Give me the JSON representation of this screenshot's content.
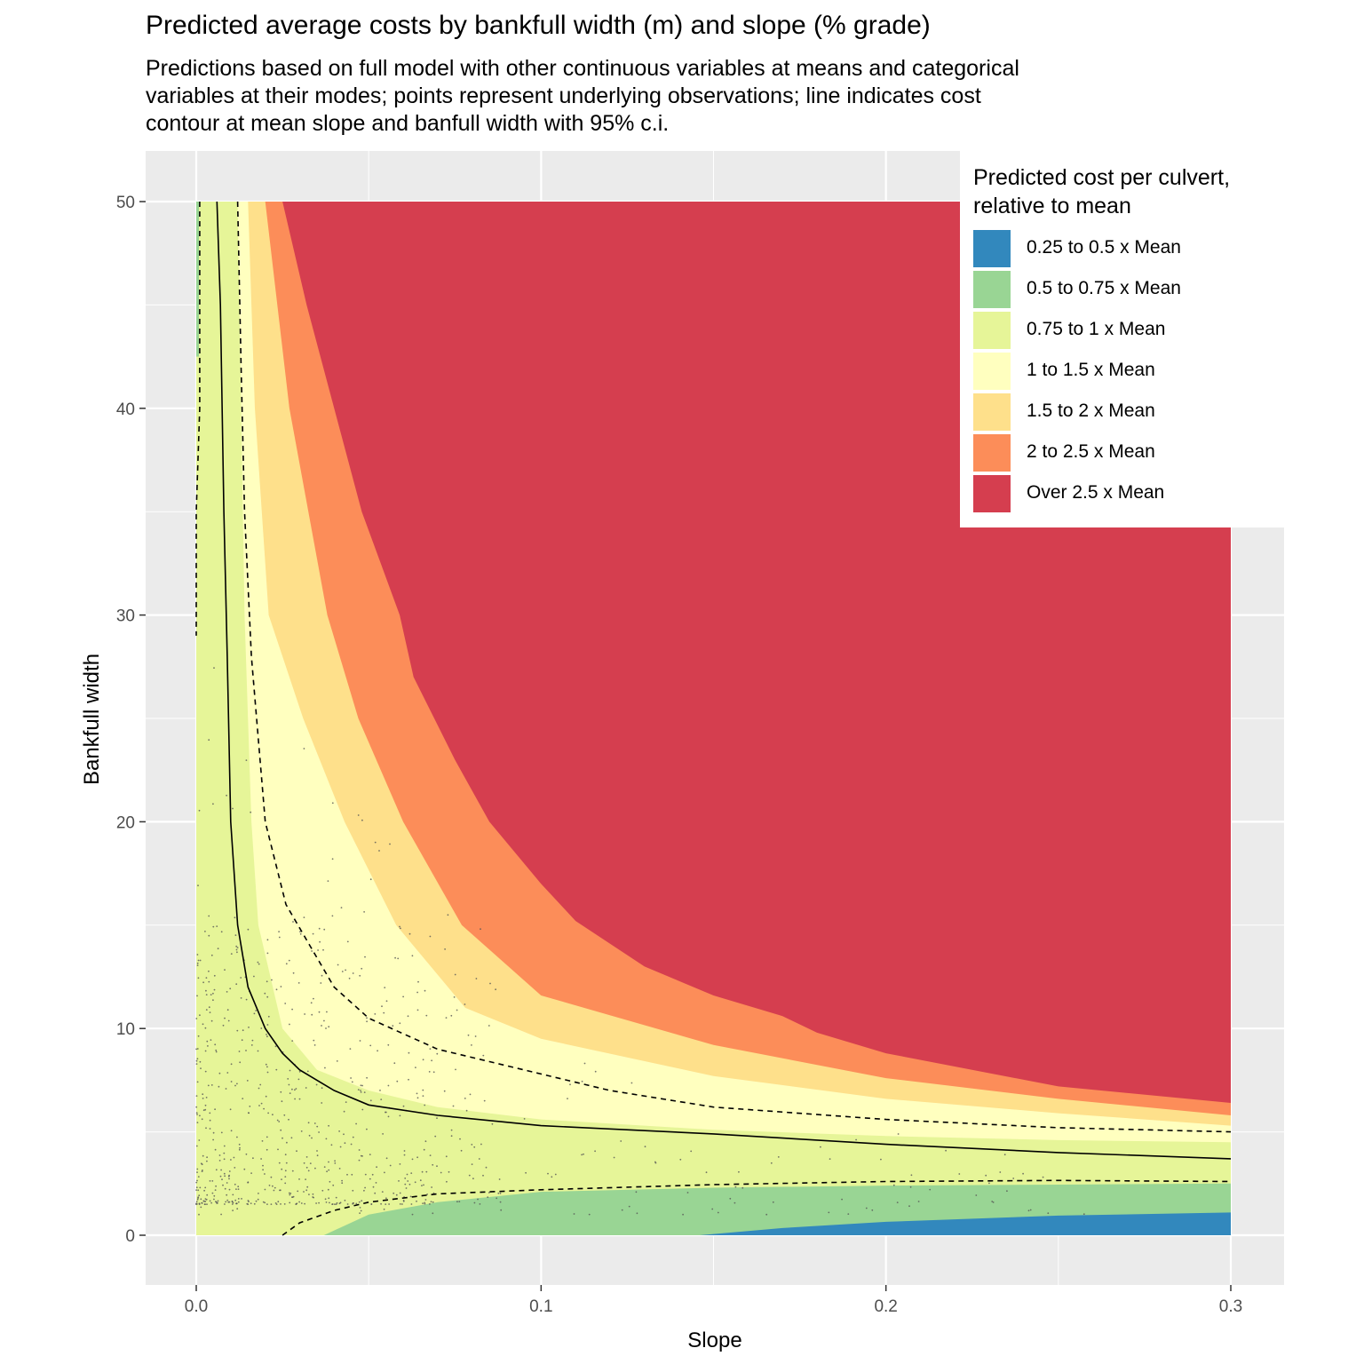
{
  "title": "Predicted average costs by bankfull width (m) and slope (% grade)",
  "subtitle": [
    "Predictions based on full model with other continuous variables at means and categorical",
    "variables at their modes; points represent underlying observations; line indicates cost",
    "contour at mean slope and banfull width with 95% c.i."
  ],
  "chart_data": {
    "type": "filled-contour",
    "title": "Predicted average costs by bankfull width (m) and slope (% grade)",
    "xlabel": "Slope",
    "ylabel": "Bankfull width",
    "xlim": [
      0,
      0.3
    ],
    "ylim": [
      0,
      50
    ],
    "x_ticks": [
      "0.0",
      "0.1",
      "0.2",
      "0.3"
    ],
    "y_ticks": [
      "0",
      "10",
      "20",
      "30",
      "40",
      "50"
    ],
    "x_tick_values": [
      0,
      0.1,
      0.2,
      0.3
    ],
    "y_tick_values": [
      0,
      10,
      20,
      30,
      40,
      50
    ],
    "legend": {
      "title": [
        "Predicted cost per culvert,",
        "relative to mean"
      ],
      "position": "top-right",
      "items": [
        {
          "label": "0.25 to 0.5 x Mean",
          "color": "#3288bd"
        },
        {
          "label": "0.5 to 0.75 x Mean",
          "color": "#99d594"
        },
        {
          "label": "0.75 to 1 x Mean",
          "color": "#e6f598"
        },
        {
          "label": "1 to 1.5 x Mean",
          "color": "#ffffbf"
        },
        {
          "label": "1.5 to 2 x Mean",
          "color": "#fee08b"
        },
        {
          "label": "2 to 2.5 x Mean",
          "color": "#fc8d59"
        },
        {
          "label": "Over 2.5 x Mean",
          "color": "#d53e4f"
        }
      ]
    },
    "bands": [
      {
        "name": "1 to 1.5 x Mean",
        "color": "#ffffbf",
        "boundary": [
          [
            0.012,
            50
          ],
          [
            0.013,
            40
          ],
          [
            0.014,
            30
          ],
          [
            0.016,
            20
          ],
          [
            0.018,
            15
          ],
          [
            0.025,
            10
          ],
          [
            0.035,
            8
          ],
          [
            0.05,
            7
          ],
          [
            0.07,
            6.2
          ],
          [
            0.1,
            5.6
          ],
          [
            0.15,
            5.1
          ],
          [
            0.2,
            4.8
          ],
          [
            0.25,
            4.6
          ],
          [
            0.3,
            4.5
          ]
        ]
      },
      {
        "name": "1.5 to 2 x Mean",
        "color": "#fee08b",
        "boundary": [
          [
            0.015,
            50
          ],
          [
            0.017,
            40
          ],
          [
            0.021,
            30
          ],
          [
            0.031,
            25
          ],
          [
            0.043,
            20
          ],
          [
            0.058,
            15
          ],
          [
            0.078,
            11
          ],
          [
            0.1,
            9.5
          ],
          [
            0.15,
            7.7
          ],
          [
            0.2,
            6.6
          ],
          [
            0.25,
            5.9
          ],
          [
            0.3,
            5.3
          ]
        ]
      },
      {
        "name": "2 to 2.5 x Mean",
        "color": "#fc8d59",
        "boundary": [
          [
            0.02,
            50
          ],
          [
            0.027,
            40
          ],
          [
            0.038,
            30
          ],
          [
            0.047,
            25
          ],
          [
            0.06,
            20
          ],
          [
            0.077,
            15
          ],
          [
            0.1,
            11.6
          ],
          [
            0.15,
            9.2
          ],
          [
            0.2,
            7.6
          ],
          [
            0.25,
            6.6
          ],
          [
            0.3,
            5.8
          ]
        ]
      },
      {
        "name": "Over 2.5 x Mean",
        "color": "#d53e4f",
        "boundary": [
          [
            0.025,
            50
          ],
          [
            0.032,
            45
          ],
          [
            0.04,
            40
          ],
          [
            0.048,
            35
          ],
          [
            0.059,
            30
          ],
          [
            0.063,
            27
          ],
          [
            0.075,
            23
          ],
          [
            0.085,
            20
          ],
          [
            0.1,
            17
          ],
          [
            0.11,
            15.2
          ],
          [
            0.13,
            13
          ],
          [
            0.15,
            11.6
          ],
          [
            0.17,
            10.6
          ],
          [
            0.18,
            9.8
          ],
          [
            0.2,
            8.8
          ],
          [
            0.25,
            7.2
          ],
          [
            0.3,
            6.4
          ]
        ]
      },
      {
        "name": "0.5 to 0.75 x Mean",
        "color": "#99d594",
        "boundary": [
          [
            0.037,
            0
          ],
          [
            0.05,
            1
          ],
          [
            0.07,
            1.6
          ],
          [
            0.1,
            2.1
          ],
          [
            0.15,
            2.3
          ],
          [
            0.2,
            2.4
          ],
          [
            0.25,
            2.45
          ],
          [
            0.3,
            2.5
          ]
        ]
      },
      {
        "name": "0.25 to 0.5 x Mean",
        "color": "#3288bd",
        "boundary": [
          [
            0.146,
            0
          ],
          [
            0.17,
            0.35
          ],
          [
            0.2,
            0.65
          ],
          [
            0.25,
            0.95
          ],
          [
            0.3,
            1.1
          ]
        ]
      }
    ],
    "mean_cost_contour": [
      [
        0.006,
        50
      ],
      [
        0.007,
        45
      ],
      [
        0.008,
        35
      ],
      [
        0.009,
        28
      ],
      [
        0.01,
        20
      ],
      [
        0.012,
        15
      ],
      [
        0.015,
        12
      ],
      [
        0.02,
        10
      ],
      [
        0.025,
        8.8
      ],
      [
        0.03,
        8
      ],
      [
        0.04,
        7
      ],
      [
        0.05,
        6.3
      ],
      [
        0.07,
        5.8
      ],
      [
        0.1,
        5.3
      ],
      [
        0.15,
        4.9
      ],
      [
        0.2,
        4.4
      ],
      [
        0.25,
        4
      ],
      [
        0.3,
        3.7
      ]
    ],
    "ci_upper": [
      [
        0.012,
        50
      ],
      [
        0.013,
        42
      ],
      [
        0.014,
        35
      ],
      [
        0.016,
        28
      ],
      [
        0.02,
        20
      ],
      [
        0.026,
        16
      ],
      [
        0.033,
        14
      ],
      [
        0.04,
        12
      ],
      [
        0.05,
        10.5
      ],
      [
        0.07,
        9
      ],
      [
        0.1,
        7.8
      ],
      [
        0.12,
        7
      ],
      [
        0.15,
        6.2
      ],
      [
        0.2,
        5.6
      ],
      [
        0.25,
        5.2
      ],
      [
        0.3,
        5
      ]
    ],
    "ci_lower_left": [
      [
        0.001,
        50
      ],
      [
        0.001,
        40
      ],
      [
        0,
        35
      ],
      [
        0,
        29
      ]
    ],
    "ci_lower": [
      [
        0.025,
        0
      ],
      [
        0.03,
        0.6
      ],
      [
        0.04,
        1.2
      ],
      [
        0.05,
        1.6
      ],
      [
        0.07,
        2
      ],
      [
        0.1,
        2.2
      ],
      [
        0.15,
        2.45
      ],
      [
        0.2,
        2.6
      ],
      [
        0.25,
        2.65
      ],
      [
        0.3,
        2.6
      ]
    ]
  }
}
